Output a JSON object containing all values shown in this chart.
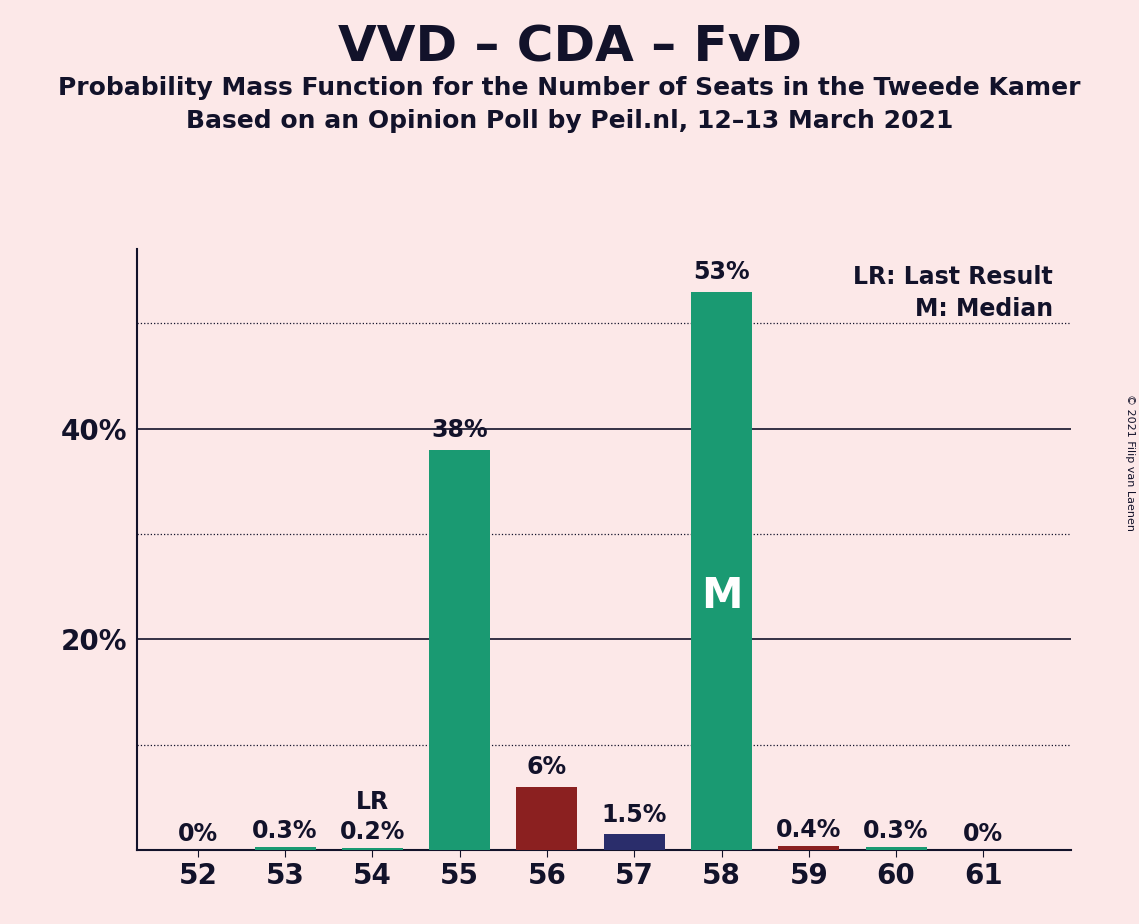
{
  "title": "VVD – CDA – FvD",
  "subtitle1": "Probability Mass Function for the Number of Seats in the Tweede Kamer",
  "subtitle2": "Based on an Opinion Poll by Peil.nl, 12–13 March 2021",
  "copyright": "© 2021 Filip van Laenen",
  "categories": [
    52,
    53,
    54,
    55,
    56,
    57,
    58,
    59,
    60,
    61
  ],
  "values": [
    0.0,
    0.3,
    0.2,
    38.0,
    6.0,
    1.5,
    53.0,
    0.4,
    0.3,
    0.0
  ],
  "labels": [
    "0%",
    "0.3%",
    "0.2%",
    "38%",
    "6%",
    "1.5%",
    "53%",
    "0.4%",
    "0.3%",
    "0%"
  ],
  "bar_colors": [
    "#1a9a72",
    "#1a9a72",
    "#1a9a72",
    "#1a9a72",
    "#8b2020",
    "#2a2d6b",
    "#1a9a72",
    "#8b2020",
    "#1a9a72",
    "#1a9a72"
  ],
  "teal_color": "#1a9a72",
  "dark_red_color": "#8b2020",
  "navy_color": "#2a2d6b",
  "background_color": "#fce8e8",
  "text_color": "#12122a",
  "median_bar": 58,
  "lr_bar": 54,
  "legend_lr": "LR: Last Result",
  "legend_m": "M: Median",
  "ylim_max": 57,
  "solid_gridlines": [
    20,
    40
  ],
  "dotted_gridlines": [
    10,
    30,
    50
  ],
  "title_fontsize": 36,
  "subtitle_fontsize": 18,
  "label_fontsize": 17,
  "tick_fontsize": 20,
  "legend_fontsize": 17,
  "m_fontsize": 30,
  "bar_width": 0.7
}
